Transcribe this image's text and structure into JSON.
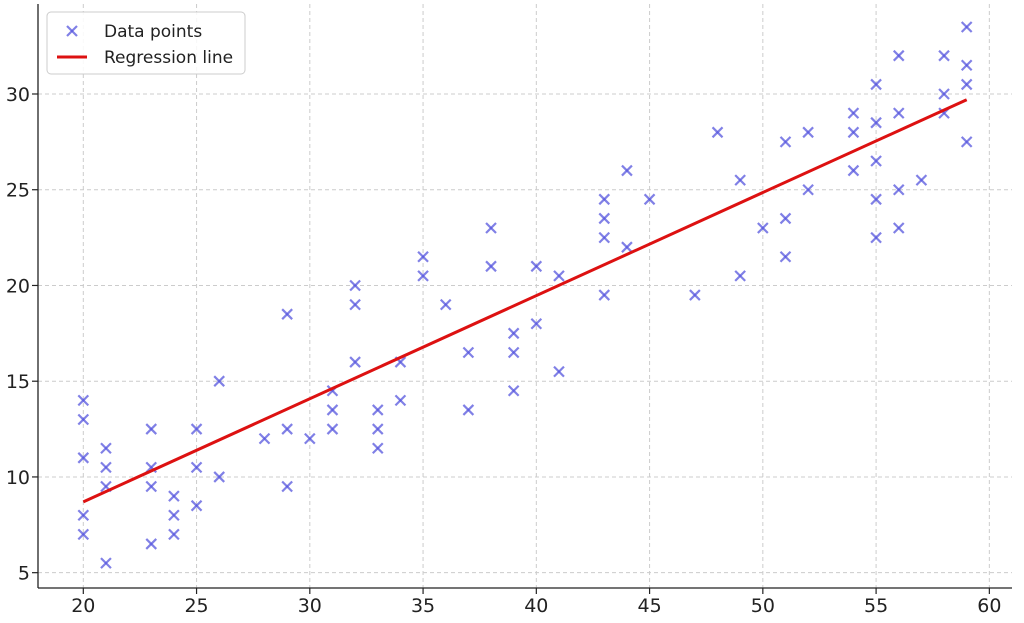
{
  "chart_data": {
    "type": "scatter",
    "title": "",
    "xlabel": "",
    "ylabel": "",
    "xlim": [
      18,
      61
    ],
    "ylim": [
      4.2,
      34.7
    ],
    "xticks": [
      20,
      25,
      30,
      35,
      40,
      45,
      50,
      55,
      60
    ],
    "yticks": [
      5,
      10,
      15,
      20,
      25,
      30
    ],
    "grid": true,
    "legend_position": "top-left",
    "series": [
      {
        "name": "Data points",
        "kind": "scatter",
        "marker": "x",
        "color": "#5555dd",
        "points": [
          [
            20,
            14
          ],
          [
            20,
            13
          ],
          [
            20,
            11
          ],
          [
            20,
            8
          ],
          [
            20,
            7
          ],
          [
            21,
            11.5
          ],
          [
            21,
            10.5
          ],
          [
            21,
            9.5
          ],
          [
            21,
            5.5
          ],
          [
            23,
            12.5
          ],
          [
            23,
            10.5
          ],
          [
            23,
            9.5
          ],
          [
            23,
            6.5
          ],
          [
            24,
            9
          ],
          [
            24,
            8
          ],
          [
            24,
            7
          ],
          [
            25,
            12.5
          ],
          [
            25,
            10.5
          ],
          [
            25,
            8.5
          ],
          [
            26,
            15
          ],
          [
            26,
            10
          ],
          [
            28,
            12
          ],
          [
            29,
            18.5
          ],
          [
            29,
            12.5
          ],
          [
            29,
            9.5
          ],
          [
            30,
            12
          ],
          [
            31,
            14.5
          ],
          [
            31,
            13.5
          ],
          [
            31,
            12.5
          ],
          [
            32,
            20
          ],
          [
            32,
            19
          ],
          [
            32,
            16
          ],
          [
            33,
            13.5
          ],
          [
            33,
            12.5
          ],
          [
            33,
            11.5
          ],
          [
            34,
            16
          ],
          [
            34,
            14
          ],
          [
            35,
            21.5
          ],
          [
            35,
            20.5
          ],
          [
            36,
            19
          ],
          [
            37,
            16.5
          ],
          [
            37,
            13.5
          ],
          [
            38,
            23
          ],
          [
            38,
            21
          ],
          [
            39,
            17.5
          ],
          [
            39,
            16.5
          ],
          [
            39,
            14.5
          ],
          [
            40,
            21
          ],
          [
            40,
            18
          ],
          [
            41,
            20.5
          ],
          [
            41,
            15.5
          ],
          [
            43,
            24.5
          ],
          [
            43,
            23.5
          ],
          [
            43,
            22.5
          ],
          [
            43,
            19.5
          ],
          [
            44,
            26
          ],
          [
            44,
            22
          ],
          [
            45,
            24.5
          ],
          [
            47,
            19.5
          ],
          [
            48,
            28
          ],
          [
            49,
            25.5
          ],
          [
            49,
            20.5
          ],
          [
            50,
            23
          ],
          [
            51,
            27.5
          ],
          [
            51,
            23.5
          ],
          [
            51,
            21.5
          ],
          [
            52,
            28
          ],
          [
            52,
            25
          ],
          [
            54,
            29
          ],
          [
            54,
            28
          ],
          [
            54,
            26
          ],
          [
            55,
            30.5
          ],
          [
            55,
            28.5
          ],
          [
            55,
            26.5
          ],
          [
            55,
            24.5
          ],
          [
            55,
            22.5
          ],
          [
            56,
            32
          ],
          [
            56,
            29
          ],
          [
            56,
            25
          ],
          [
            56,
            23
          ],
          [
            57,
            25.5
          ],
          [
            58,
            32
          ],
          [
            58,
            30
          ],
          [
            58,
            29
          ],
          [
            59,
            33.5
          ],
          [
            59,
            31.5
          ],
          [
            59,
            30.5
          ],
          [
            59,
            27.5
          ]
        ]
      },
      {
        "name": "Regression line",
        "kind": "line",
        "color": "#dd1111",
        "points": [
          [
            20,
            8.7
          ],
          [
            59,
            29.7
          ]
        ]
      }
    ]
  }
}
